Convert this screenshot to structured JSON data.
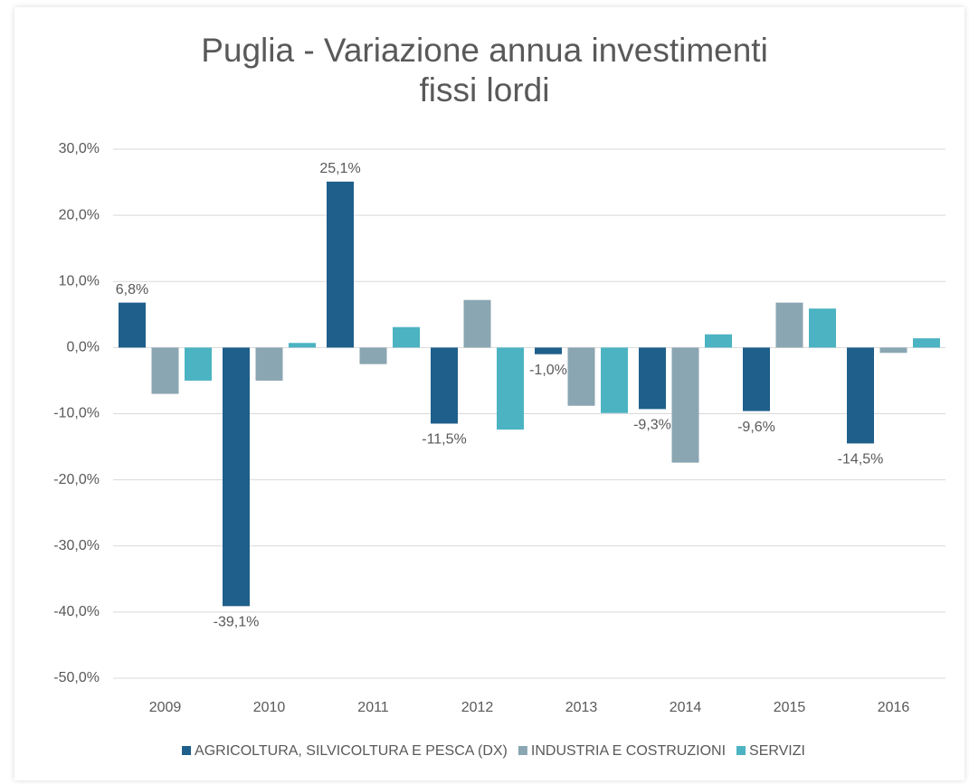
{
  "chart_data": {
    "type": "bar",
    "title": "Puglia - Variazione annua investimenti\nfissi lordi",
    "categories": [
      "2009",
      "2010",
      "2011",
      "2012",
      "2013",
      "2014",
      "2015",
      "2016"
    ],
    "series": [
      {
        "name": "AGRICOLTURA, SILVICOLTURA E PESCA (DX)",
        "color": "#1f5f8b",
        "values": [
          6.8,
          -39.1,
          25.1,
          -11.5,
          -1.0,
          -9.3,
          -9.6,
          -14.5
        ],
        "value_labels": [
          "6,8%",
          "-39,1%",
          "25,1%",
          "-11,5%",
          "-1,0%",
          "-9,3%",
          "-9,6%",
          "-14,5%"
        ]
      },
      {
        "name": "INDUSTRIA E COSTRUZIONI",
        "color": "#8aa6b2",
        "values": [
          -7.0,
          -5.0,
          -2.5,
          7.2,
          -8.8,
          -17.4,
          6.8,
          -0.8
        ]
      },
      {
        "name": "SERVIZI",
        "color": "#4bb3c2",
        "values": [
          -5.0,
          0.7,
          3.1,
          -12.4,
          -9.9,
          2.0,
          5.9,
          1.4
        ]
      }
    ],
    "ylim": [
      -50,
      30
    ],
    "yticks": [
      {
        "value": -50,
        "label": "-50,0%"
      },
      {
        "value": -40,
        "label": "-40,0%"
      },
      {
        "value": -30,
        "label": "-30,0%"
      },
      {
        "value": -20,
        "label": "-20,0%"
      },
      {
        "value": -10,
        "label": "-10,0%"
      },
      {
        "value": 0,
        "label": "0,0%"
      },
      {
        "value": 10,
        "label": "10,0%"
      },
      {
        "value": 20,
        "label": "20,0%"
      },
      {
        "value": 30,
        "label": "30,0%"
      }
    ],
    "grid": true
  }
}
